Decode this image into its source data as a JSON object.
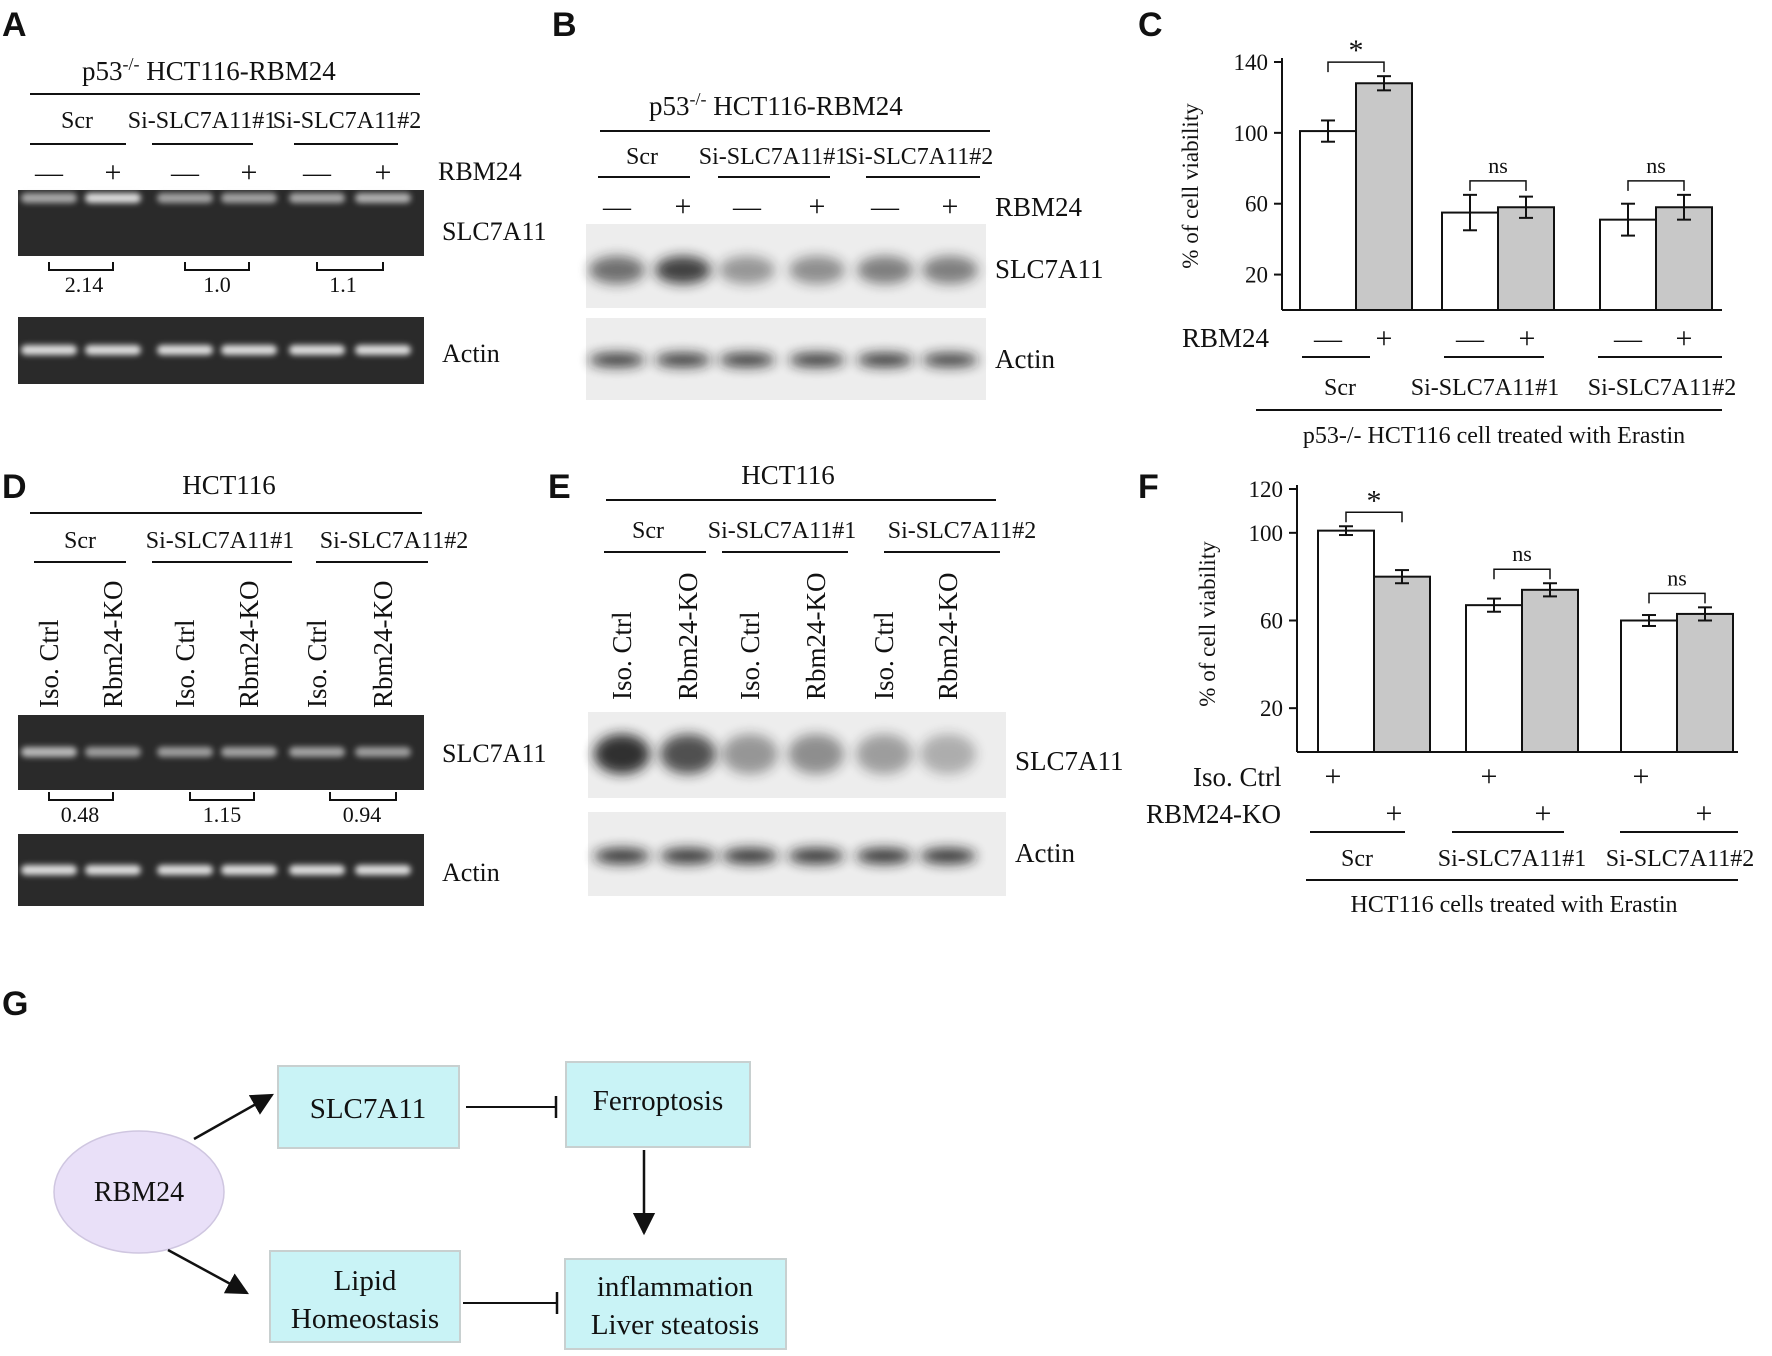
{
  "panels": {
    "A": {
      "letter": "A",
      "title_pre": "p53",
      "title_sup": "-/-",
      "title_post": " HCT116-RBM24",
      "groups": [
        "Scr",
        "Si-SLC7A11#1",
        "Si-SLC7A11#2"
      ],
      "signs": [
        "—",
        "+",
        "—",
        "+",
        "—",
        "+"
      ],
      "sign_label": "RBM24",
      "band1_label": "SLC7A11",
      "band2_label": "Actin",
      "ratios": [
        "2.14",
        "1.0",
        "1.1"
      ],
      "band_intensity": [
        0.55,
        1.0,
        0.5,
        0.5,
        0.55,
        0.62
      ]
    },
    "B": {
      "letter": "B",
      "title_pre": "p53",
      "title_sup": "-/-",
      "title_post": " HCT116-RBM24",
      "groups": [
        "Scr",
        "Si-SLC7A11#1",
        "Si-SLC7A11#2"
      ],
      "signs": [
        "—",
        "+",
        "—",
        "+",
        "—",
        "+"
      ],
      "sign_label": "RBM24",
      "band1_label": "SLC7A11",
      "band2_label": "Actin",
      "band_intensity": [
        0.6,
        0.9,
        0.35,
        0.4,
        0.5,
        0.5
      ]
    },
    "D": {
      "letter": "D",
      "title": "HCT116",
      "groups": [
        "Scr",
        "Si-SLC7A11#1",
        "Si-SLC7A11#2"
      ],
      "lanes": [
        "Iso. Ctrl",
        "Rbm24-KO",
        "Iso. Ctrl",
        "Rbm24-KO",
        "Iso. Ctrl",
        "Rbm24-KO"
      ],
      "band1_label": "SLC7A11",
      "band2_label": "Actin",
      "ratios": [
        "0.48",
        "1.15",
        "0.94"
      ],
      "band_intensity": [
        0.7,
        0.45,
        0.45,
        0.5,
        0.5,
        0.45
      ]
    },
    "E": {
      "letter": "E",
      "title": "HCT116",
      "groups": [
        "Scr",
        "Si-SLC7A11#1",
        "Si-SLC7A11#2"
      ],
      "lanes": [
        "Iso. Ctrl",
        "Rbm24-KO",
        "Iso. Ctrl",
        "Rbm24-KO",
        "Iso. Ctrl",
        "Rbm24-KO"
      ],
      "band1_label": "SLC7A11",
      "band2_label": "Actin",
      "band_intensity": [
        1.0,
        0.8,
        0.35,
        0.4,
        0.3,
        0.2
      ]
    },
    "C": {
      "letter": "C",
      "ylabel": "% of cell viability",
      "signs": [
        "—",
        "+",
        "—",
        "+",
        "—",
        "+"
      ],
      "sign_label": "RBM24",
      "groups": [
        "Scr",
        "Si-SLC7A11#1",
        "Si-SLC7A11#2"
      ],
      "caption": "p53-/- HCT116 cell treated with Erastin",
      "sig": [
        "*",
        "ns",
        "ns"
      ]
    },
    "F": {
      "letter": "F",
      "ylabel": "% of cell viability",
      "row1_label": "Iso. Ctrl",
      "row2_label": "RBM24-KO",
      "plus": "+",
      "groups": [
        "Scr",
        "Si-SLC7A11#1",
        "Si-SLC7A11#2"
      ],
      "caption": "HCT116 cells treated with Erastin",
      "sig": [
        "*",
        "ns",
        "ns"
      ]
    },
    "G": {
      "letter": "G",
      "nodes": {
        "rbm24": "RBM24",
        "slc7a11": "SLC7A11",
        "ferroptosis": "Ferroptosis",
        "lipid_1": "Lipid",
        "lipid_2": "Homeostasis",
        "inflam_1": "inflammation",
        "inflam_2": "Liver steatosis"
      }
    }
  },
  "colors": {
    "gel": "#2a2a2a",
    "gel_band": "#dcdcdc",
    "blot_bg": "#ededed",
    "blot_band": "#1a1a1a",
    "bar_control": "#ffffff",
    "bar_treated": "#c8c8c8",
    "node_fill": "#c9f3f6",
    "ellipse_fill": "#e9e0f8"
  },
  "chart_data": [
    {
      "type": "bar",
      "panel": "C",
      "ylabel": "% of cell viability",
      "yticks": [
        20,
        60,
        100,
        140
      ],
      "ylim": [
        0,
        140
      ],
      "categories": [
        "Scr",
        "Si-SLC7A11#1",
        "Si-SLC7A11#2"
      ],
      "series": [
        {
          "values": [
            101,
            55,
            51
          ],
          "errors": [
            6,
            10,
            9
          ]
        },
        {
          "values": [
            128,
            58,
            58
          ],
          "errors": [
            4,
            6,
            7
          ]
        }
      ]
    },
    {
      "type": "bar",
      "panel": "F",
      "ylabel": "% of cell viability",
      "yticks": [
        20,
        60,
        100,
        120
      ],
      "ylim": [
        0,
        120
      ],
      "categories": [
        "Scr",
        "Si-SLC7A11#1",
        "Si-SLC7A11#2"
      ],
      "series": [
        {
          "values": [
            101,
            67,
            60
          ],
          "errors": [
            2,
            3,
            2.5
          ]
        },
        {
          "values": [
            80,
            74,
            63
          ],
          "errors": [
            3,
            3,
            3
          ]
        }
      ]
    }
  ]
}
